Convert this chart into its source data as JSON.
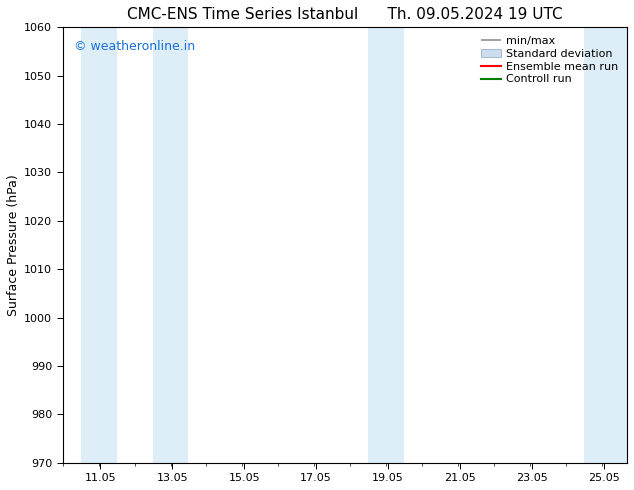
{
  "title_left": "CMC-ENS Time Series Istanbul",
  "title_right": "Th. 09.05.2024 19 UTC",
  "ylabel": "Surface Pressure (hPa)",
  "ylim": [
    970,
    1060
  ],
  "yticks": [
    970,
    980,
    990,
    1000,
    1010,
    1020,
    1030,
    1040,
    1050,
    1060
  ],
  "xlim_start": 10.0,
  "xlim_end": 25.7,
  "xtick_labels": [
    "11.05",
    "13.05",
    "15.05",
    "17.05",
    "19.05",
    "21.05",
    "23.05",
    "25.05"
  ],
  "xtick_positions": [
    11.05,
    13.05,
    15.05,
    17.05,
    19.05,
    21.05,
    23.05,
    25.05
  ],
  "shaded_bands": [
    {
      "x_start": 10.5,
      "x_end": 11.5,
      "color": "#ddeef9"
    },
    {
      "x_start": 12.5,
      "x_end": 13.5,
      "color": "#ddeef9"
    },
    {
      "x_start": 18.5,
      "x_end": 19.5,
      "color": "#ddeef9"
    },
    {
      "x_start": 24.5,
      "x_end": 25.7,
      "color": "#ddeef9"
    }
  ],
  "watermark_text": "© weatheronline.in",
  "watermark_color": "#1a6fdb",
  "background_color": "#ffffff",
  "font_size_title": 11,
  "font_size_axis": 9,
  "font_size_tick": 8,
  "font_size_legend": 8,
  "font_size_watermark": 9
}
